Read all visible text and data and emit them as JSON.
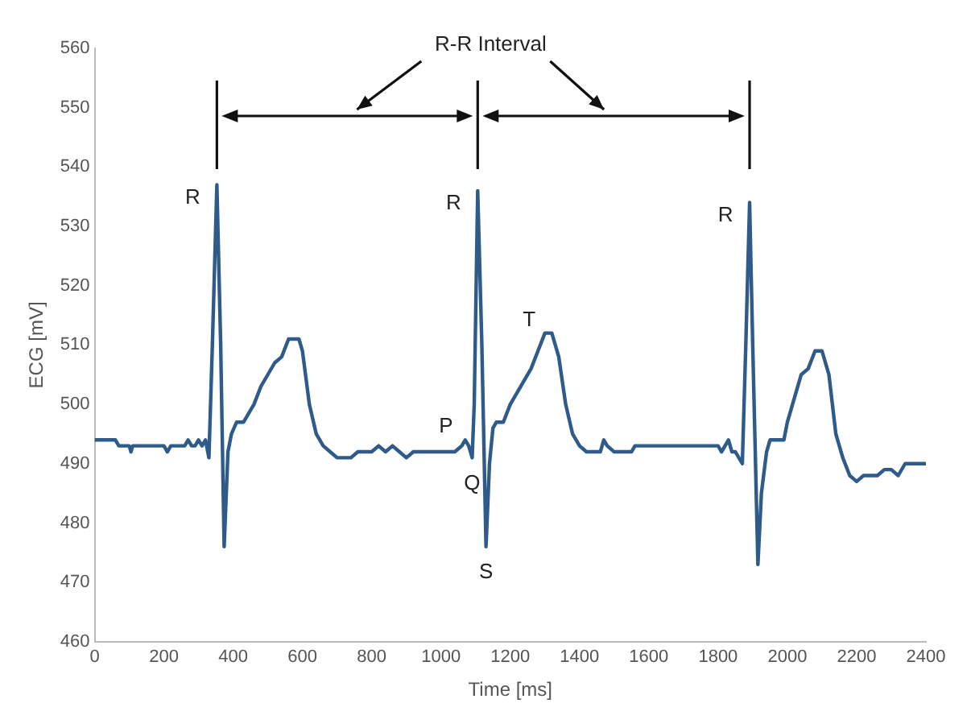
{
  "chart_data": {
    "type": "line",
    "xlabel": "Time [ms]",
    "ylabel": "ECG [mV]",
    "xlim": [
      0,
      2400
    ],
    "xticks": [
      0,
      200,
      400,
      600,
      800,
      1000,
      1200,
      1400,
      1600,
      1800,
      2000,
      2200,
      2400
    ],
    "ylim": [
      460,
      560
    ],
    "yticks": [
      460,
      470,
      480,
      490,
      500,
      510,
      520,
      530,
      540,
      550,
      560
    ],
    "grid": false,
    "legend": false,
    "marker": "none",
    "line_style": "solid",
    "series": [
      {
        "color": "#2f5b8a",
        "x": [
          0,
          60,
          70,
          100,
          105,
          110,
          200,
          210,
          220,
          260,
          270,
          280,
          290,
          300,
          310,
          320,
          330,
          340,
          353,
          364,
          374,
          385,
          395,
          410,
          430,
          440,
          460,
          480,
          500,
          520,
          540,
          560,
          590,
          600,
          620,
          640,
          660,
          680,
          700,
          740,
          760,
          800,
          820,
          840,
          860,
          880,
          900,
          920,
          1000,
          1040,
          1060,
          1070,
          1080,
          1090,
          1096,
          1106,
          1118,
          1130,
          1140,
          1150,
          1160,
          1180,
          1200,
          1220,
          1240,
          1260,
          1280,
          1300,
          1320,
          1340,
          1360,
          1380,
          1400,
          1420,
          1460,
          1470,
          1480,
          1500,
          1550,
          1560,
          1630,
          1660,
          1800,
          1810,
          1820,
          1830,
          1840,
          1850,
          1870,
          1880,
          1891,
          1900,
          1915,
          1925,
          1940,
          1950,
          1990,
          2000,
          2020,
          2040,
          2060,
          2080,
          2100,
          2120,
          2140,
          2160,
          2180,
          2200,
          2220,
          2260,
          2280,
          2300,
          2320,
          2340,
          2400
        ],
        "values": [
          494,
          494,
          493,
          493,
          492,
          493,
          493,
          492,
          493,
          493,
          494,
          493,
          493,
          494,
          493,
          494,
          491,
          510,
          537,
          510,
          476,
          492,
          495,
          497,
          497,
          498,
          500,
          503,
          505,
          507,
          508,
          511,
          511,
          509,
          500,
          495,
          493,
          492,
          491,
          491,
          492,
          492,
          493,
          492,
          493,
          492,
          491,
          492,
          492,
          492,
          493,
          494,
          493,
          491,
          500,
          536,
          510,
          476,
          490,
          496,
          497,
          497,
          500,
          502,
          504,
          506,
          509,
          512,
          512,
          508,
          500,
          495,
          493,
          492,
          492,
          494,
          493,
          492,
          492,
          493,
          493,
          493,
          493,
          492,
          493,
          494,
          492,
          492,
          490,
          510,
          534,
          510,
          473,
          485,
          492,
          494,
          494,
          497,
          501,
          505,
          506,
          509,
          509,
          505,
          495,
          491,
          488,
          487,
          488,
          488,
          489,
          489,
          488,
          490,
          490
        ]
      }
    ],
    "annotations": [
      "R-R Interval",
      {
        "text": "R",
        "x": 353,
        "y": 537
      },
      {
        "text": "R",
        "x": 1106,
        "y": 536
      },
      {
        "text": "R",
        "x": 1891,
        "y": 534
      },
      {
        "text": "P",
        "x": 1070,
        "y": 494
      },
      {
        "text": "Q",
        "x": 1090,
        "y": 491
      },
      {
        "text": "S",
        "x": 1130,
        "y": 476
      },
      {
        "text": "T",
        "x": 1310,
        "y": 512
      }
    ]
  }
}
